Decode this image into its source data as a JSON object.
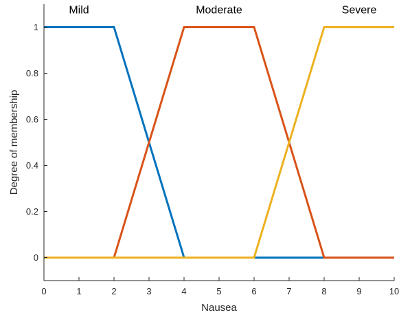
{
  "chart_data": {
    "type": "line",
    "xlabel": "Nausea",
    "ylabel": "Degree of membership",
    "xlim": [
      0,
      10
    ],
    "ylim": [
      -0.1,
      1.1
    ],
    "xticks": [
      0,
      1,
      2,
      3,
      4,
      5,
      6,
      7,
      8,
      9,
      10
    ],
    "yticks": [
      0,
      0.2,
      0.4,
      0.6,
      0.8,
      1
    ],
    "xtick_labels": [
      "0",
      "1",
      "2",
      "3",
      "4",
      "5",
      "6",
      "7",
      "8",
      "9",
      "10"
    ],
    "ytick_labels": [
      "0",
      "0.2",
      "0.4",
      "0.6",
      "0.8",
      "1"
    ],
    "grid": false,
    "series": [
      {
        "name": "Mild",
        "color": "#0072BD",
        "x": [
          0,
          2,
          4,
          10
        ],
        "y": [
          1,
          1,
          0,
          0
        ],
        "label_at": [
          1,
          1.06
        ]
      },
      {
        "name": "Moderate",
        "color": "#D95319",
        "x": [
          0,
          2,
          4,
          6,
          8,
          10
        ],
        "y": [
          0,
          0,
          1,
          1,
          0,
          0
        ],
        "label_at": [
          5,
          1.06
        ]
      },
      {
        "name": "Severe",
        "color": "#EDB120",
        "x": [
          0,
          6,
          8,
          10
        ],
        "y": [
          0,
          0,
          1,
          1
        ],
        "label_at": [
          9,
          1.06
        ]
      }
    ]
  }
}
